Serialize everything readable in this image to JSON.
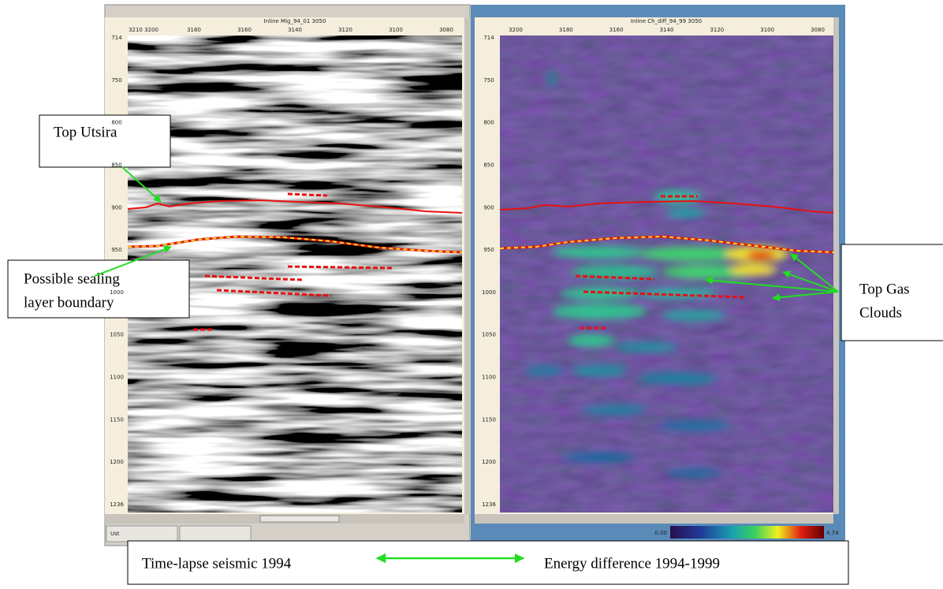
{
  "left_panel": {
    "header": "Inline Mig_94_01 3050",
    "x_labels": [
      "3210 3200",
      "3180",
      "3160",
      "3140",
      "3120",
      "3100",
      "3080"
    ],
    "y_labels": [
      "714",
      "750",
      "800",
      "850",
      "900",
      "950",
      "1000",
      "1050",
      "1100",
      "1150",
      "1200",
      "1236"
    ],
    "status": "Ust"
  },
  "right_panel": {
    "header": "Inline Ch_diff_94_99 3050",
    "x_labels": [
      "3200",
      "3180",
      "3160",
      "3140",
      "3120",
      "3100",
      "3080"
    ],
    "y_labels": [
      "714",
      "750",
      "800",
      "850",
      "900",
      "950",
      "1000",
      "1050",
      "1100",
      "1150",
      "1200",
      "1236"
    ],
    "colorbar": {
      "min_label": "0.00",
      "max_label": "4.74"
    }
  },
  "annotations": {
    "top_utsira": "Top Utsira",
    "sealing": [
      "Possible sealing",
      "layer boundary"
    ],
    "gas": [
      "Top Gas",
      "Clouds"
    ]
  },
  "captions": {
    "left": "Time-lapse seismic 1994",
    "right": "Energy difference 1994-1999"
  }
}
